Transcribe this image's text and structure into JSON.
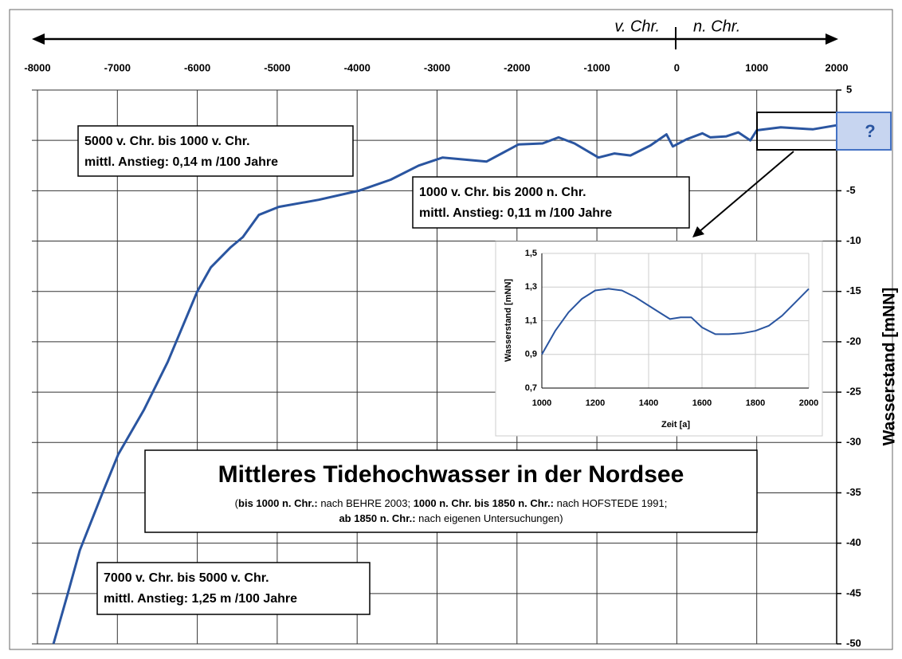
{
  "chart_data": [
    {
      "type": "line",
      "title": "Mittleres Tidehochwasser in der Nordsee",
      "subtitle": [
        [
          {
            "text": "(",
            "bold": false
          },
          {
            "text": "bis 1000 n. Chr.:",
            "bold": true
          },
          {
            "text": " nach BEHRE 2003; ",
            "bold": false
          },
          {
            "text": "1000 n. Chr. bis 1850 n. Chr.:",
            "bold": true
          },
          {
            "text": " nach HOFSTEDE 1991;",
            "bold": false
          }
        ],
        [
          {
            "text": "ab 1850 n. Chr.:",
            "bold": true
          },
          {
            "text": " nach eigenen Untersuchungen)",
            "bold": false
          }
        ]
      ],
      "y_label": "Wasserstand [mNN]",
      "era_labels": [
        "v. Chr.",
        "n. Chr."
      ],
      "unknown_label": "?",
      "annotations": [
        {
          "lines": [
            "5000 v. Chr. bis 1000 v. Chr.",
            "mittl. Anstieg: 0,14 m /100 Jahre"
          ]
        },
        {
          "lines": [
            "1000 v. Chr. bis 2000 n. Chr.",
            "mittl. Anstieg: 0,11 m /100 Jahre"
          ]
        },
        {
          "lines": [
            "7000 v. Chr. bis 5000 v. Chr.",
            "mittl. Anstieg: 1,25 m /100 Jahre"
          ]
        }
      ],
      "x": [
        -7800,
        -7620,
        -7470,
        -7190,
        -6990,
        -6670,
        -6370,
        -6000,
        -5830,
        -5580,
        -5430,
        -5230,
        -4980,
        -4480,
        -3980,
        -3580,
        -3230,
        -2930,
        -2380,
        -1980,
        -1680,
        -1480,
        -1280,
        -980,
        -780,
        -580,
        -330,
        -130,
        -50,
        120,
        320,
        420,
        620,
        770,
        920,
        1000,
        1300,
        1700,
        2000
      ],
      "values": [
        -50,
        -45,
        -40.7,
        -35.1,
        -31.2,
        -26.8,
        -22,
        -15,
        -12.6,
        -10.6,
        -9.6,
        -7.4,
        -6.6,
        -5.9,
        -5,
        -3.9,
        -2.5,
        -1.7,
        -2.1,
        -0.4,
        -0.3,
        0.3,
        -0.3,
        -1.7,
        -1.3,
        -1.5,
        -0.5,
        0.6,
        -0.6,
        0.1,
        0.7,
        0.3,
        0.4,
        0.8,
        0,
        1.0,
        1.3,
        1.1,
        1.5
      ],
      "color": "#2a55a0",
      "xlim": [
        -8000,
        2000
      ],
      "xticks": [
        -8000,
        -7000,
        -6000,
        -5000,
        -4000,
        -3000,
        -2000,
        -1000,
        0,
        1000,
        2000
      ],
      "ylim": [
        -50,
        5
      ],
      "yticks": [
        5,
        0,
        -5,
        -10,
        -15,
        -20,
        -25,
        -30,
        -35,
        -40,
        -45,
        -50
      ],
      "xaxis_position": "top",
      "yaxis_position": "right",
      "grid": true
    },
    {
      "type": "line",
      "x_label": "Zeit [a]",
      "y_label": "Wasserstand [mNN]",
      "x": [
        1000,
        1050,
        1100,
        1150,
        1200,
        1250,
        1300,
        1350,
        1400,
        1450,
        1480,
        1520,
        1560,
        1600,
        1650,
        1700,
        1750,
        1800,
        1850,
        1900,
        1950,
        2000
      ],
      "values": [
        0.9,
        1.04,
        1.15,
        1.23,
        1.28,
        1.29,
        1.28,
        1.24,
        1.19,
        1.14,
        1.11,
        1.12,
        1.12,
        1.06,
        1.02,
        1.02,
        1.025,
        1.04,
        1.07,
        1.13,
        1.21,
        1.29
      ],
      "color": "#2a55a0",
      "xlim": [
        1000,
        2000
      ],
      "xticks": [
        1000,
        1200,
        1400,
        1600,
        1800,
        2000
      ],
      "ylim": [
        0.7,
        1.5
      ],
      "yticks": [
        {
          "value": 0.7,
          "label": "0,7"
        },
        {
          "value": 0.9,
          "label": "0,9"
        },
        {
          "value": 1.1,
          "label": "1,1"
        },
        {
          "value": 1.3,
          "label": "1,3"
        },
        {
          "value": 1.5,
          "label": "1,5"
        }
      ],
      "xaxis_position": "bottom",
      "yaxis_position": "left",
      "grid": true
    }
  ]
}
